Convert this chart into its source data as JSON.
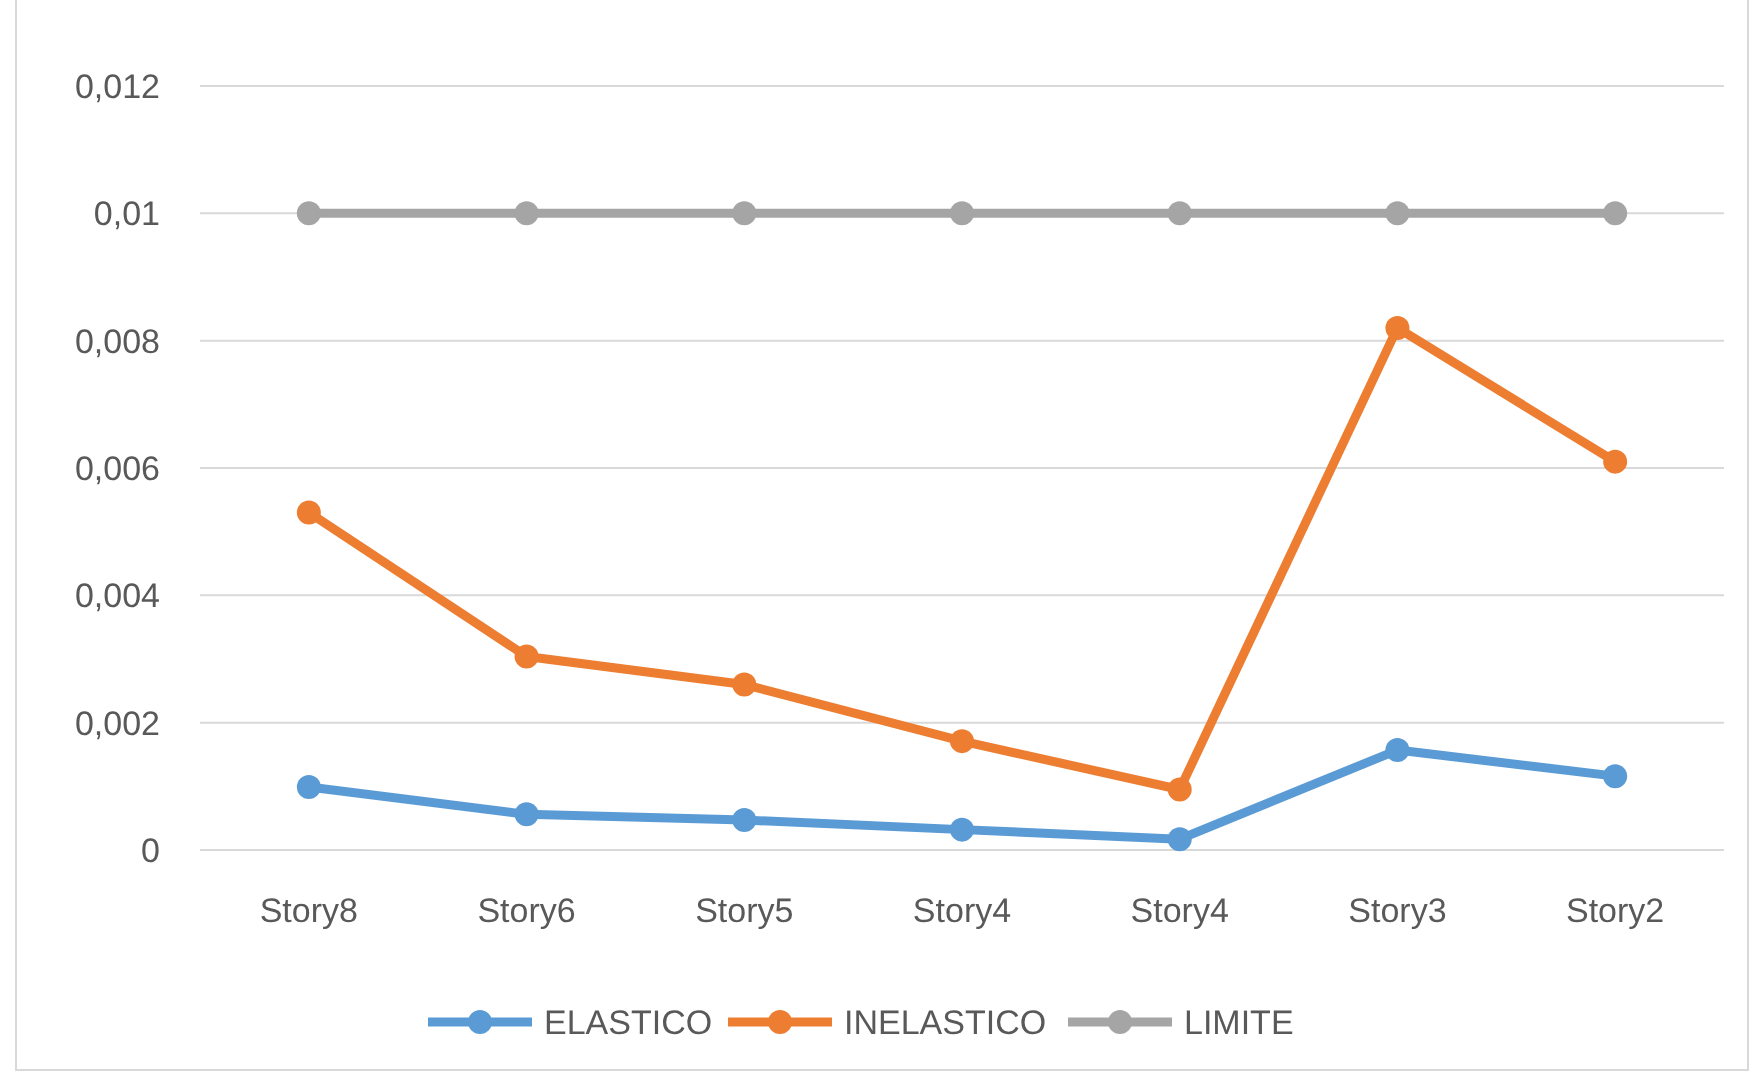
{
  "chart_data": {
    "type": "line",
    "categories": [
      "Story8",
      "Story6",
      "Story5",
      "Story4",
      "Story4",
      "Story3",
      "Story2"
    ],
    "series": [
      {
        "name": "ELASTICO",
        "color": "#5b9bd5",
        "values": [
          0.00099,
          0.00056,
          0.00047,
          0.00032,
          0.00017,
          0.00157,
          0.00116
        ]
      },
      {
        "name": "INELASTICO",
        "color": "#ed7d31",
        "values": [
          0.0053,
          0.00304,
          0.0026,
          0.00171,
          0.00095,
          0.0082,
          0.0061
        ]
      },
      {
        "name": "LIMITE",
        "color": "#a5a5a5",
        "values": [
          0.01,
          0.01,
          0.01,
          0.01,
          0.01,
          0.01,
          0.01
        ]
      }
    ],
    "ylim": [
      0,
      0.012
    ],
    "yticks": [
      {
        "value": 0,
        "label": "0"
      },
      {
        "value": 0.002,
        "label": "0,002"
      },
      {
        "value": 0.004,
        "label": "0,004"
      },
      {
        "value": 0.006,
        "label": "0,006"
      },
      {
        "value": 0.008,
        "label": "0,008"
      },
      {
        "value": 0.01,
        "label": "0,01"
      },
      {
        "value": 0.012,
        "label": "0,012"
      }
    ],
    "grid": "y",
    "legend": "bottom",
    "marker": "circle",
    "line_style": "solid"
  }
}
